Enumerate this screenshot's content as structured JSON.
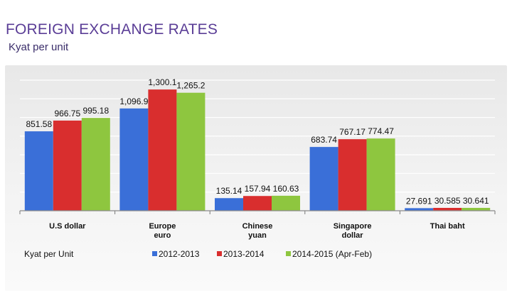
{
  "header": {
    "title": "FOREIGN EXCHANGE RATES",
    "subtitle": "Kyat per unit"
  },
  "chart_data": {
    "type": "bar",
    "title": "FOREIGN EXCHANGE RATES",
    "subtitle": "Kyat per unit",
    "ylabel": "Kyat per Unit",
    "ylim": [
      0,
      1400
    ],
    "grid": true,
    "legend_position": "bottom",
    "categories": [
      [
        "U.S dollar"
      ],
      [
        "Europe",
        "euro"
      ],
      [
        "Chinese",
        "yuan"
      ],
      [
        "Singapore",
        "dollar"
      ],
      [
        "Thai baht"
      ]
    ],
    "series": [
      {
        "name": "2012-2013",
        "color": "#3a6fd8",
        "values": [
          851.58,
          1096.9,
          135.14,
          683.74,
          27.691
        ],
        "labels": [
          "851.58",
          "1,096.9",
          "135.14",
          "683.74",
          "27.691"
        ]
      },
      {
        "name": "2013-2014",
        "color": "#d92e2e",
        "values": [
          966.75,
          1300.1,
          157.94,
          767.17,
          30.585
        ],
        "labels": [
          "966.75",
          "1,300.1",
          "157.94",
          "767.17",
          "30.585"
        ]
      },
      {
        "name": "2014-2015 (Apr-Feb)",
        "color": "#8ec63f",
        "values": [
          995.18,
          1265.2,
          160.63,
          774.47,
          30.641
        ],
        "labels": [
          "995.18",
          "1,265.2",
          "160.63",
          "774.47",
          "30.641"
        ]
      }
    ]
  }
}
